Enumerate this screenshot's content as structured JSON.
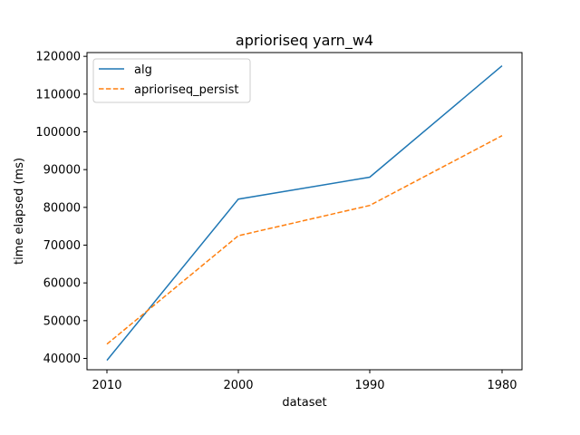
{
  "chart_data": {
    "type": "line",
    "title": "aprioriseq yarn_w4",
    "xlabel": "dataset",
    "ylabel": "time elapsed (ms)",
    "categories": [
      "2010",
      "2000",
      "1990",
      "1980"
    ],
    "ylim": [
      37000,
      121000
    ],
    "yticks": [
      40000,
      50000,
      60000,
      70000,
      80000,
      90000,
      100000,
      110000,
      120000
    ],
    "grid": false,
    "legend_position": "top-left",
    "series": [
      {
        "name": "alg",
        "values": [
          39500,
          82200,
          88000,
          117500
        ],
        "color": "#1f77b4",
        "style": "solid"
      },
      {
        "name": "aprioriseq_persist",
        "values": [
          43800,
          72500,
          80500,
          99000
        ],
        "color": "#ff7f0e",
        "style": "dashed"
      }
    ]
  }
}
